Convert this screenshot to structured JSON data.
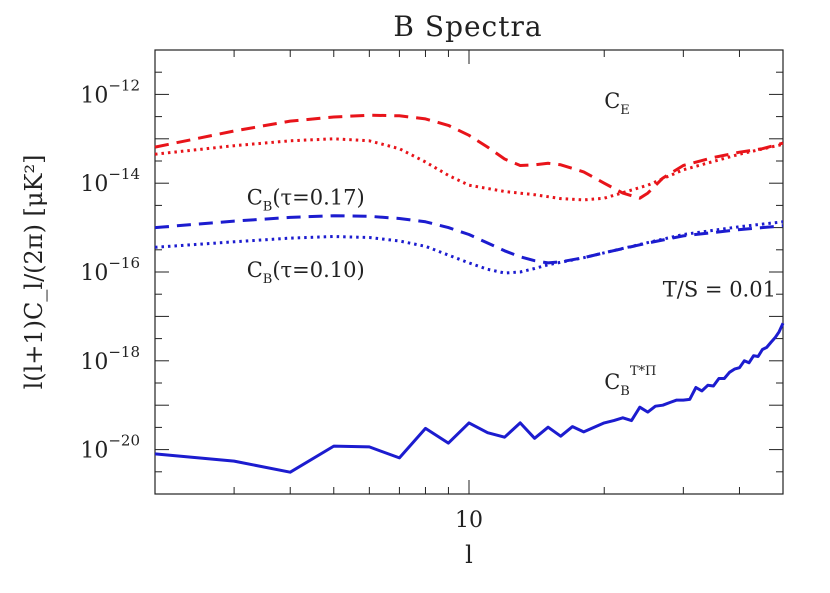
{
  "chart_data": {
    "type": "line",
    "title": "B Spectra",
    "xlabel": "l",
    "ylabel": "l(l+1)C_l/(2π)  [μK²]",
    "xscale": "log",
    "yscale": "log",
    "xlim": [
      2,
      50
    ],
    "ylim": [
      1e-21,
      1e-11
    ],
    "x_ticks": [
      {
        "value": 10,
        "label": "10"
      }
    ],
    "y_ticks": [
      {
        "value": 1e-12,
        "base": "10",
        "exp": "−12"
      },
      {
        "value": 1e-14,
        "base": "10",
        "exp": "−14"
      },
      {
        "value": 1e-16,
        "base": "10",
        "exp": "−16"
      },
      {
        "value": 1e-18,
        "base": "10",
        "exp": "−18"
      },
      {
        "value": 1e-20,
        "base": "10",
        "exp": "−20"
      }
    ],
    "grid": false,
    "legend": "none",
    "series": [
      {
        "style": "dashed",
        "color": "#e8141a",
        "x": [
          2,
          3,
          4,
          5,
          6,
          7,
          8,
          9,
          10,
          11,
          12,
          13,
          14,
          15,
          16,
          18,
          20,
          22,
          24,
          25,
          27,
          30,
          35,
          40,
          45,
          50
        ],
        "y": [
          6.5e-14,
          1.5e-13,
          2.5e-13,
          3.1e-13,
          3.4e-13,
          3.3e-13,
          2.8e-13,
          2e-13,
          1.2e-13,
          6.5e-14,
          3.5e-14,
          2.5e-14,
          2.6e-14,
          2.8e-14,
          2.6e-14,
          1.8e-14,
          1e-14,
          6e-15,
          4.6e-15,
          6e-15,
          1.3e-14,
          2.5e-14,
          3.8e-14,
          5e-14,
          6e-14,
          8e-14
        ]
      },
      {
        "style": "dotted",
        "color": "#e8141a",
        "x": [
          2,
          3,
          4,
          5,
          6,
          7,
          8,
          9,
          10,
          12,
          14,
          16,
          18,
          20,
          25,
          30,
          40,
          50
        ],
        "y": [
          4.5e-14,
          7e-14,
          9e-14,
          1e-13,
          9e-14,
          6e-14,
          3e-14,
          1.5e-14,
          9e-15,
          6.5e-15,
          5.5e-15,
          4.5e-15,
          4.2e-15,
          4.6e-15,
          9e-15,
          2e-14,
          4.5e-14,
          7.5e-14
        ]
      },
      {
        "style": "dashed",
        "color": "#1c1ccf",
        "x": [
          2,
          3,
          4,
          5,
          6,
          7,
          8,
          9,
          10,
          11,
          12,
          13,
          14,
          15,
          16,
          18,
          20,
          25,
          30,
          40,
          50
        ],
        "y": [
          1e-15,
          1.4e-15,
          1.7e-15,
          1.85e-15,
          1.8e-15,
          1.6e-15,
          1.35e-15,
          1e-15,
          7e-16,
          4.5e-16,
          3e-16,
          2.2e-16,
          1.8e-16,
          1.6e-16,
          1.7e-16,
          2.1e-16,
          2.7e-16,
          4.5e-16,
          6.5e-16,
          9e-16,
          1.1e-15
        ]
      },
      {
        "style": "dotted",
        "color": "#1c1ccf",
        "x": [
          2,
          3,
          4,
          5,
          6,
          7,
          8,
          9,
          10,
          11,
          12,
          13,
          14,
          15,
          16,
          18,
          20,
          25,
          30,
          40,
          50
        ],
        "y": [
          3.6e-16,
          4.8e-16,
          5.8e-16,
          6.3e-16,
          6e-16,
          5e-16,
          3.8e-16,
          2.4e-16,
          1.6e-16,
          1.15e-16,
          9.5e-17,
          1e-16,
          1.2e-16,
          1.45e-16,
          1.65e-16,
          2.1e-16,
          2.7e-16,
          4.6e-16,
          7e-16,
          1.05e-15,
          1.35e-15
        ]
      },
      {
        "style": "solid",
        "color": "#1c1ccf",
        "x": [
          2,
          3,
          4,
          5,
          6,
          7,
          8,
          9,
          10,
          11,
          12,
          13,
          14,
          15,
          16,
          17,
          18,
          19,
          20,
          21,
          22,
          23,
          24,
          25,
          26,
          27,
          28,
          29,
          30,
          31,
          32,
          33,
          34,
          35,
          36,
          37,
          38,
          39,
          40,
          41,
          42,
          43,
          44,
          45,
          46,
          47,
          48,
          49,
          50
        ],
        "y": [
          8e-21,
          5.5e-21,
          3.1e-21,
          1.2e-20,
          1.15e-20,
          6.5e-21,
          3e-20,
          1.4e-20,
          4e-20,
          2.4e-20,
          1.9e-20,
          4e-20,
          1.8e-20,
          3.2e-20,
          2e-20,
          3.3e-20,
          2.5e-20,
          3.2e-20,
          4e-20,
          4.5e-20,
          5.2e-20,
          4.5e-20,
          9e-20,
          7e-20,
          9.5e-20,
          1e-19,
          1.15e-19,
          1.3e-19,
          1.3e-19,
          1.35e-19,
          2.5e-19,
          2.1e-19,
          2.8e-19,
          2.7e-19,
          4e-19,
          4e-19,
          5.5e-19,
          6.5e-19,
          7e-19,
          1e-18,
          9e-19,
          1.3e-18,
          1.25e-18,
          1.8e-18,
          2e-18,
          2.6e-18,
          3.3e-18,
          4.5e-18,
          7e-18
        ]
      }
    ],
    "annotations": [
      {
        "main": "C",
        "sub": "E",
        "tail": "",
        "x": 20,
        "y": 5e-13
      },
      {
        "main": "C",
        "sub": "B",
        "tail": "(τ=0.17)",
        "x": 3.2,
        "y": 3.3e-15
      },
      {
        "main": "C",
        "sub": "B",
        "tail": "(τ=0.10)",
        "x": 3.2,
        "y": 7.8e-17
      },
      {
        "main": "T/S = 0.01",
        "sub": "",
        "tail": "",
        "x": 27,
        "y": 2.8e-17
      },
      {
        "main": "C",
        "sub": "B",
        "sup": "T*Π",
        "tail": "",
        "x": 20,
        "y": 2.3e-19
      }
    ]
  }
}
